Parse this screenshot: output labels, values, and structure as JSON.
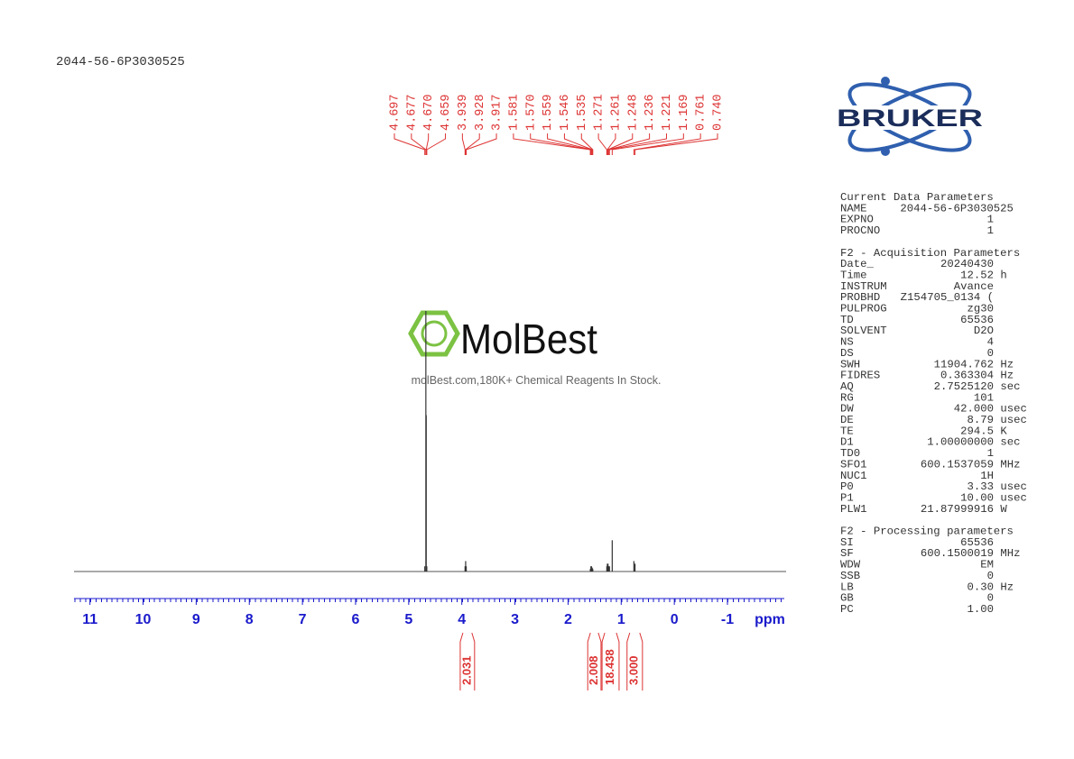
{
  "header": {
    "title": "2044-56-6P3030525"
  },
  "logo": {
    "text": "BRUKER"
  },
  "watermark": {
    "brand": "MolBest",
    "tagline": "molBest.com,180K+ Chemical Reagents In Stock."
  },
  "chart_data": {
    "type": "nmr",
    "x_label": "ppm",
    "xlim": [
      11.3,
      -2.07
    ],
    "xticks": [
      11,
      10,
      9,
      8,
      7,
      6,
      5,
      4,
      3,
      2,
      1,
      0,
      -1
    ],
    "ylim": [
      0,
      100
    ],
    "color": "#333333",
    "label_color": "#dd3333",
    "axis_color": "#1a1acc",
    "peaks": {
      "x": [
        4.697,
        4.677,
        4.67,
        4.659,
        3.939,
        3.928,
        3.917,
        1.581,
        1.57,
        1.559,
        1.546,
        1.535,
        1.271,
        1.261,
        1.248,
        1.236,
        1.221,
        1.169,
        0.761,
        0.74
      ],
      "x_labels": [
        "4.697",
        "4.677",
        "4.670",
        "4.659",
        "3.939",
        "3.928",
        "3.917",
        "1.581",
        "1.570",
        "1.559",
        "1.546",
        "1.535",
        "1.271",
        "1.261",
        "1.248",
        "1.236",
        "1.221",
        "1.169",
        "0.761",
        "0.740"
      ],
      "values": [
        2,
        100,
        60,
        2,
        2,
        4,
        2,
        1,
        2,
        2,
        1.5,
        1,
        2,
        3,
        3,
        2,
        2,
        12,
        4,
        3
      ]
    },
    "integrals": {
      "from": [
        4.03,
        1.63,
        1.36,
        0.89
      ],
      "to": [
        3.76,
        1.38,
        1.04,
        0.6
      ],
      "values": [
        2.031,
        2.008,
        18.438,
        3
      ],
      "value_labels": [
        "2.031",
        "2.008",
        "18.438",
        "3.000"
      ]
    }
  },
  "parameters": [
    {
      "title": "Current Data Parameters",
      "rows": [
        [
          "NAME",
          "2044-56-6P3030525"
        ],
        [
          "EXPNO",
          "1"
        ],
        [
          "PROCNO",
          "1"
        ]
      ]
    },
    {
      "title": "F2 - Acquisition Parameters",
      "rows": [
        [
          "Date_",
          "20240430"
        ],
        [
          "Time",
          "12.52",
          "h"
        ],
        [
          "INSTRUM",
          "Avance"
        ],
        [
          "PROBHD",
          "Z154705_0134 ("
        ],
        [
          "PULPROG",
          "zg30"
        ],
        [
          "TD",
          "65536"
        ],
        [
          "SOLVENT",
          "D2O"
        ],
        [
          "NS",
          "4"
        ],
        [
          "DS",
          "0"
        ],
        [
          "SWH",
          "11904.762",
          "Hz"
        ],
        [
          "FIDRES",
          "0.363304",
          "Hz"
        ],
        [
          "AQ",
          "2.7525120",
          "sec"
        ],
        [
          "RG",
          "101"
        ],
        [
          "DW",
          "42.000",
          "usec"
        ],
        [
          "DE",
          "8.79",
          "usec"
        ],
        [
          "TE",
          "294.5",
          "K"
        ],
        [
          "D1",
          "1.00000000",
          "sec"
        ],
        [
          "TD0",
          "1"
        ],
        [
          "SFO1",
          "600.1537059",
          "MHz"
        ],
        [
          "NUC1",
          "1H"
        ],
        [
          "P0",
          "3.33",
          "usec"
        ],
        [
          "P1",
          "10.00",
          "usec"
        ],
        [
          "PLW1",
          "21.87999916",
          "W"
        ]
      ]
    },
    {
      "title": "F2 - Processing parameters",
      "rows": [
        [
          "SI",
          "65536"
        ],
        [
          "SF",
          "600.1500019",
          "MHz"
        ],
        [
          "WDW",
          "EM"
        ],
        [
          "SSB",
          "0"
        ],
        [
          "LB",
          "0.30",
          "Hz"
        ],
        [
          "GB",
          "0"
        ],
        [
          "PC",
          "1.00"
        ]
      ]
    }
  ]
}
